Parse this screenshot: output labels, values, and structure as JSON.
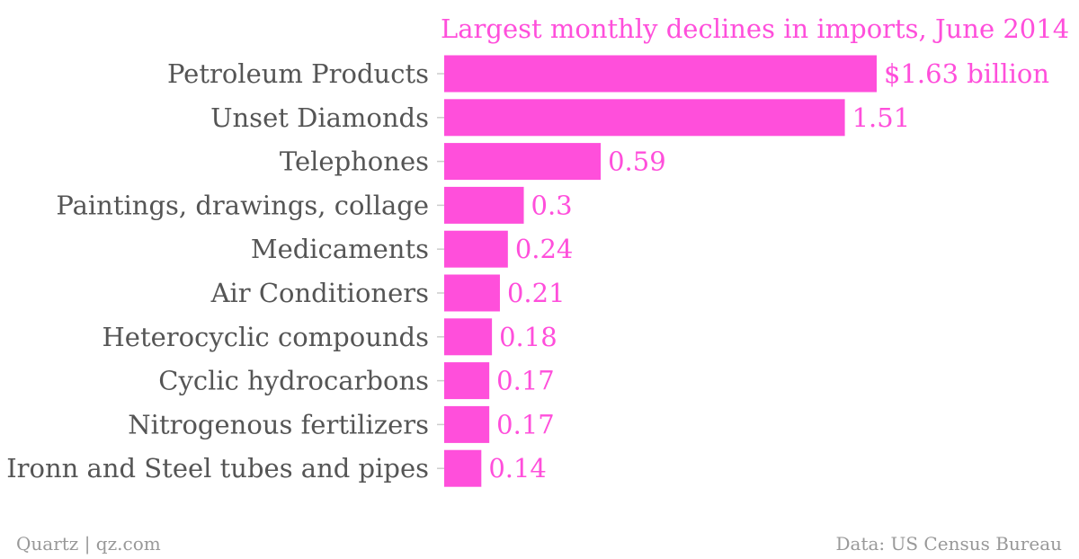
{
  "colors": {
    "accent": "#ff4fdb",
    "label": "#555555",
    "footer": "#999999",
    "tick": "#cccccc"
  },
  "footer": {
    "source_left": "Quartz | qz.com",
    "source_right": "Data: US Census Bureau"
  },
  "chart_data": {
    "type": "bar",
    "orientation": "horizontal",
    "title": "Largest monthly declines in imports, June 2014",
    "xlabel": "",
    "ylabel": "",
    "unit_prefix": "$",
    "unit_suffix": " billion",
    "xlim": [
      0,
      1.63
    ],
    "grid": false,
    "legend": "none",
    "categories": [
      "Petroleum Products",
      "Unset Diamonds",
      "Telephones",
      "Paintings, drawings, collage",
      "Medicaments",
      "Air Conditioners",
      "Heterocyclic compounds",
      "Cyclic hydrocarbons",
      "Nitrogenous fertilizers",
      "Ironn and Steel tubes and pipes"
    ],
    "values": [
      1.63,
      1.51,
      0.59,
      0.3,
      0.24,
      0.21,
      0.18,
      0.17,
      0.17,
      0.14
    ],
    "value_labels": [
      "$1.63 billion",
      "1.51",
      "0.59",
      "0.3",
      "0.24",
      "0.21",
      "0.18",
      "0.17",
      "0.17",
      "0.14"
    ]
  }
}
